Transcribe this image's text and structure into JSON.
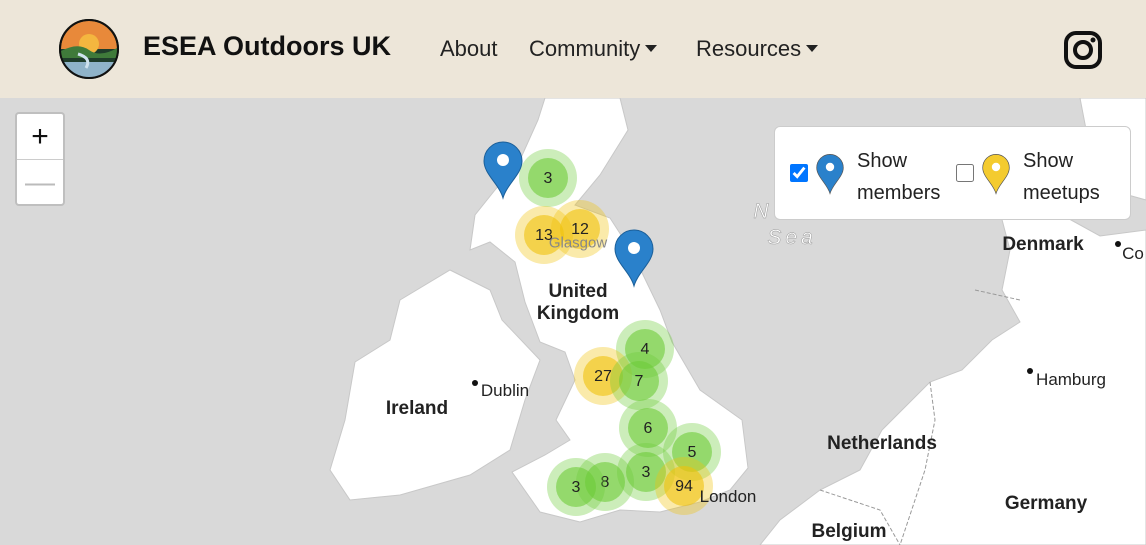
{
  "navbar": {
    "brand": "ESEA Outdoors UK",
    "links": [
      "About",
      "Community",
      "Resources"
    ],
    "dropdown": [
      false,
      true,
      true
    ]
  },
  "map": {
    "zoom_in": "+",
    "zoom_out": "—",
    "legend": [
      {
        "label": "Show members",
        "checked": true,
        "color": "#2a81cb"
      },
      {
        "label": "Show meetups",
        "checked": false,
        "color": "#f4cb2f"
      }
    ],
    "labels": [
      "N",
      "Sea",
      "Denmark",
      "Co",
      "Glasgow",
      "United Kingdom",
      "Dublin",
      "Ireland",
      "Hamburg",
      "Netherlands",
      "London",
      "Germany",
      "Belgium"
    ],
    "clusters": [
      {
        "count": "3",
        "color": "#6ecc39"
      },
      {
        "count": "13",
        "color": "#f0c20c"
      },
      {
        "count": "12",
        "color": "#f0c20c"
      },
      {
        "count": "4",
        "color": "#6ecc39"
      },
      {
        "count": "27",
        "color": "#f0c20c"
      },
      {
        "count": "7",
        "color": "#6ecc39"
      },
      {
        "count": "6",
        "color": "#6ecc39"
      },
      {
        "count": "5",
        "color": "#6ecc39"
      },
      {
        "count": "8",
        "color": "#6ecc39"
      },
      {
        "count": "3",
        "color": "#6ecc39"
      },
      {
        "count": "3",
        "color": "#6ecc39"
      },
      {
        "count": "94",
        "color": "#f0c20c"
      }
    ]
  }
}
